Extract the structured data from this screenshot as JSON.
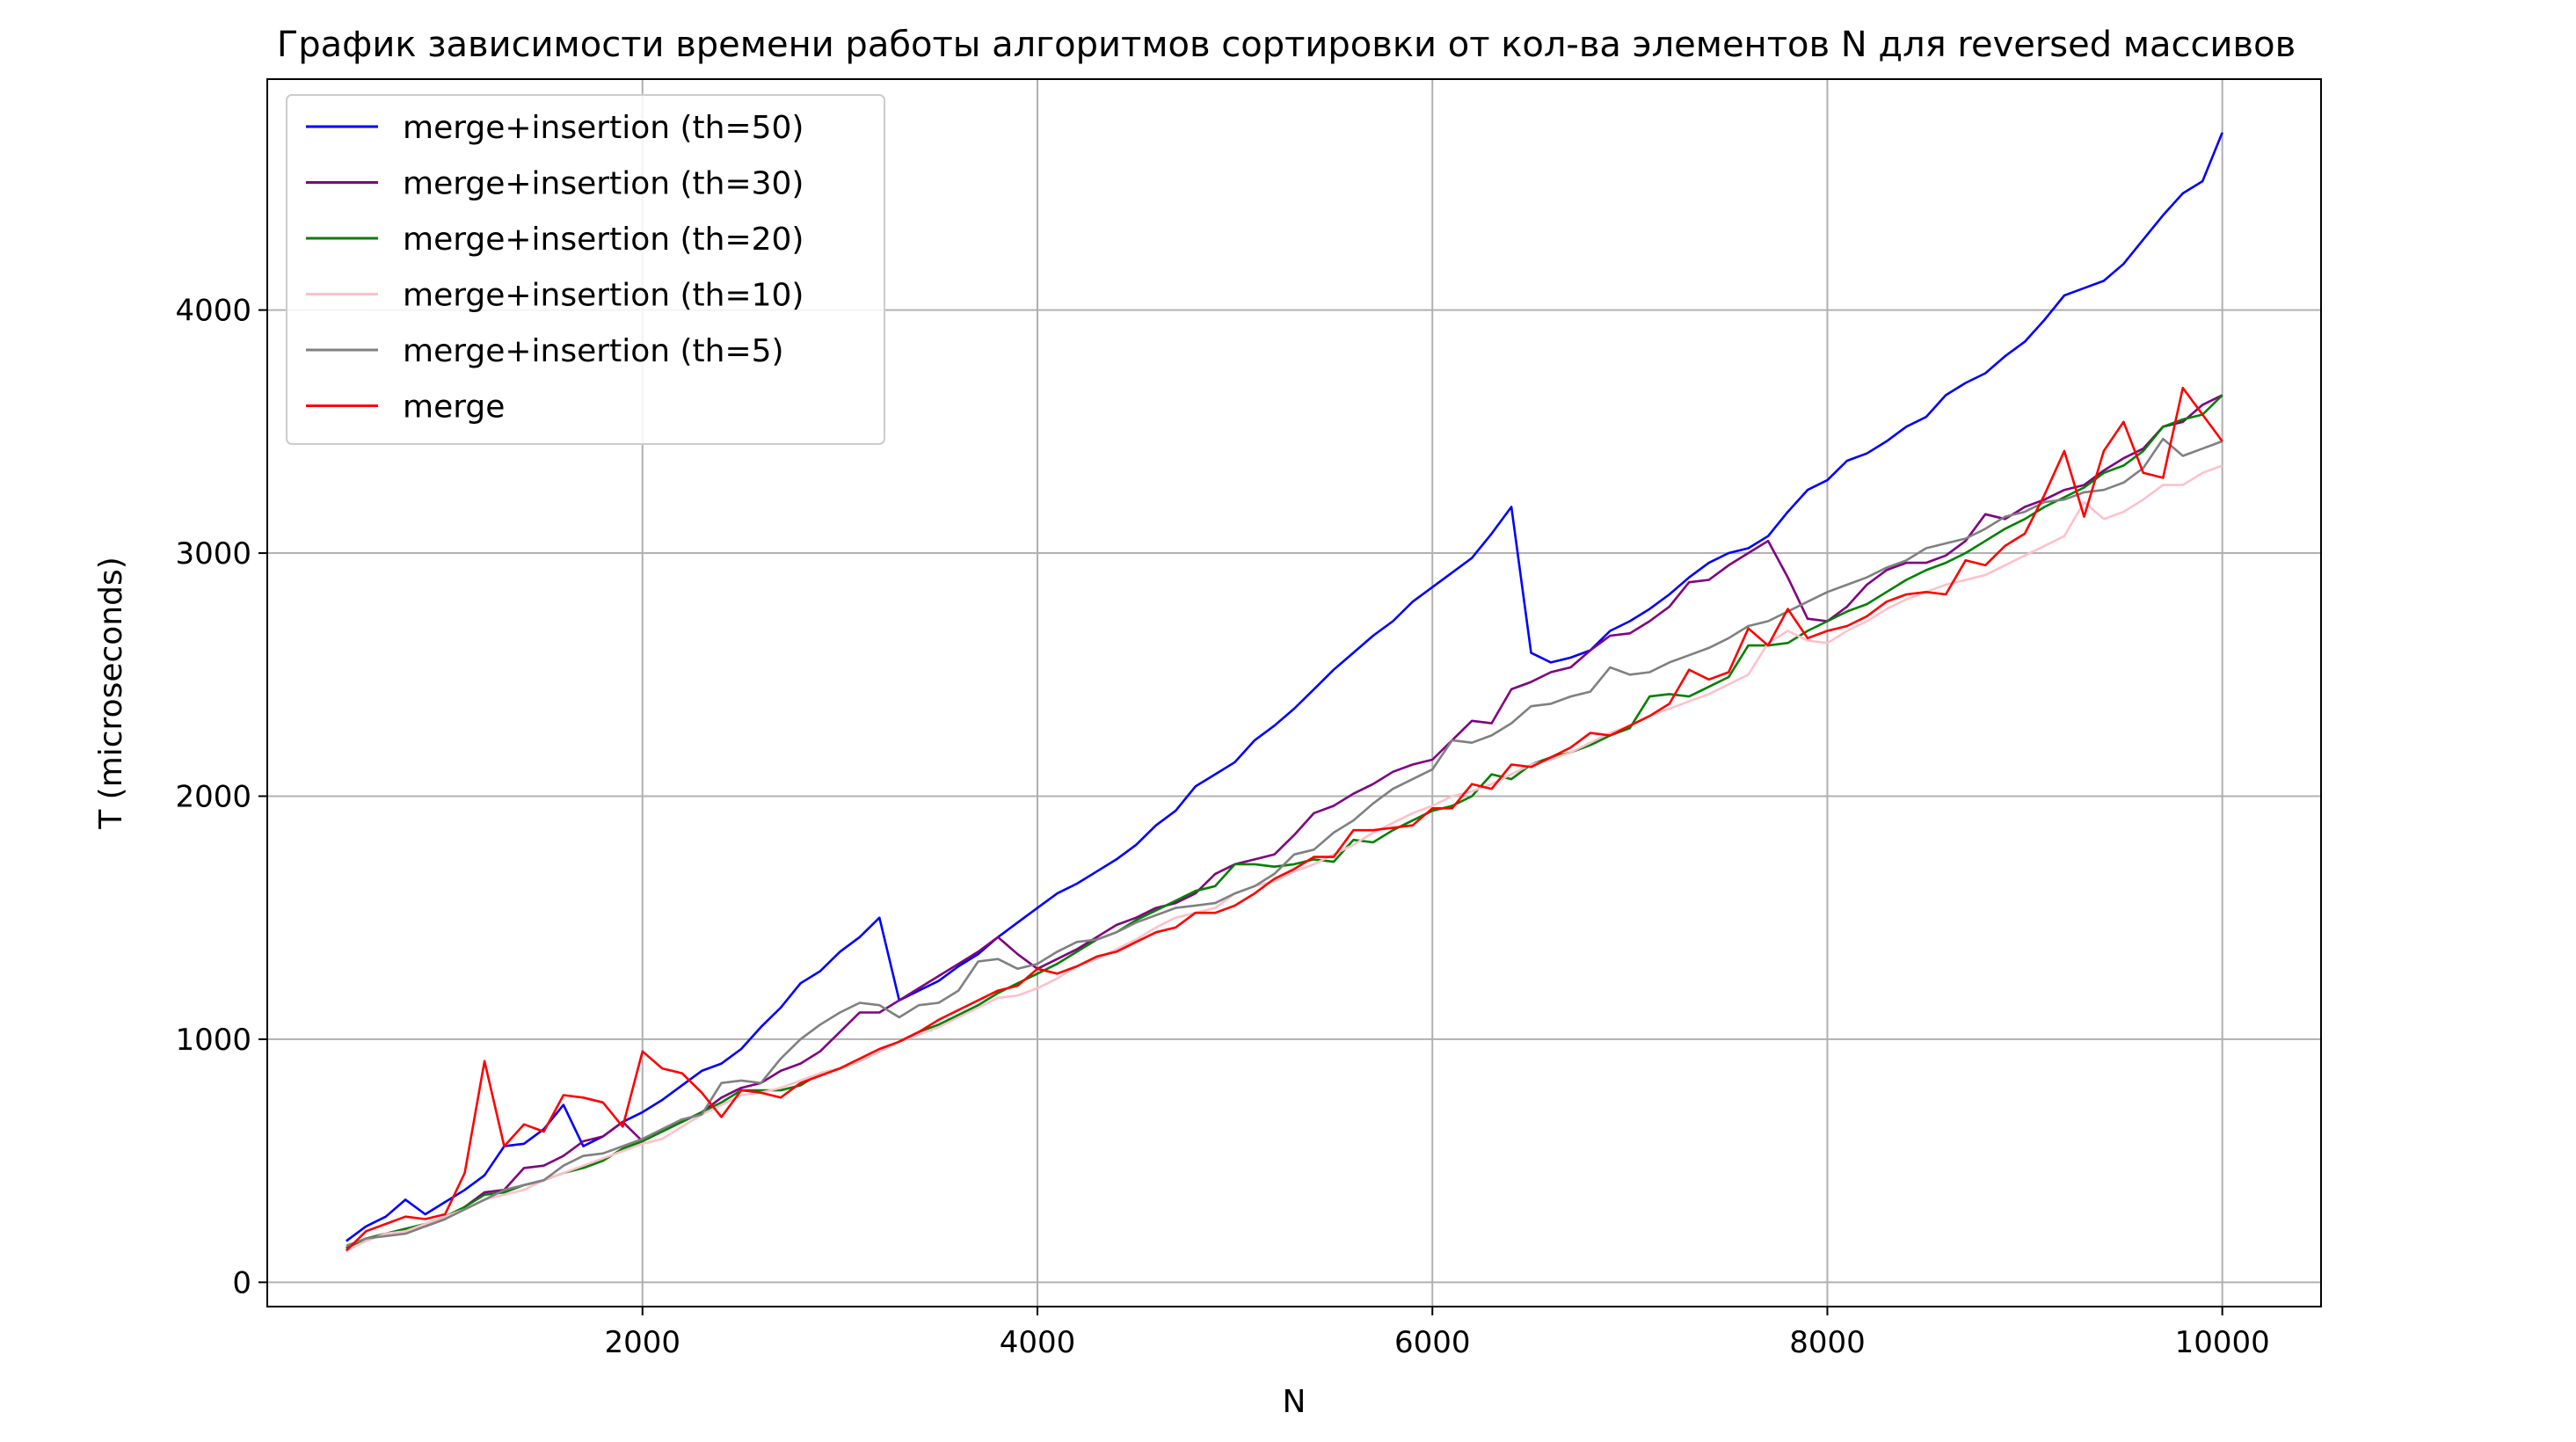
{
  "chart_data": {
    "type": "line",
    "title": "График зависимости времени работы алгоритмов сортировки от кол-ва элементов N для reversed массивов",
    "xlabel": "N",
    "ylabel": "T (microseconds)",
    "xlim": [
      100,
      10500
    ],
    "ylim": [
      -100,
      4950
    ],
    "xticks": [
      2000,
      4000,
      6000,
      8000,
      10000
    ],
    "yticks": [
      0,
      1000,
      2000,
      3000,
      4000
    ],
    "grid": true,
    "legend_position": "top-left",
    "x": [
      500,
      600,
      700,
      800,
      900,
      1000,
      1100,
      1200,
      1300,
      1400,
      1500,
      1600,
      1700,
      1800,
      1900,
      2000,
      2100,
      2200,
      2300,
      2400,
      2500,
      2600,
      2700,
      2800,
      2900,
      3000,
      3100,
      3200,
      3300,
      3400,
      3500,
      3600,
      3700,
      3800,
      3900,
      4000,
      4100,
      4200,
      4300,
      4400,
      4500,
      4600,
      4700,
      4800,
      4900,
      5000,
      5100,
      5200,
      5300,
      5400,
      5500,
      5600,
      5700,
      5800,
      5900,
      6000,
      6100,
      6200,
      6300,
      6400,
      6500,
      6600,
      6700,
      6800,
      6900,
      7000,
      7100,
      7200,
      7300,
      7400,
      7500,
      7600,
      7700,
      7800,
      7900,
      8000,
      8100,
      8200,
      8300,
      8400,
      8500,
      8600,
      8700,
      8800,
      8900,
      9000,
      9100,
      9200,
      9300,
      9400,
      9500,
      9600,
      9700,
      9800,
      9900,
      10000
    ],
    "series": [
      {
        "name": "merge+insertion (th=50)",
        "color": "#0000ff",
        "values": [
          170,
          230,
          270,
          340,
          280,
          330,
          380,
          440,
          560,
          570,
          630,
          730,
          560,
          600,
          660,
          700,
          750,
          810,
          870,
          900,
          960,
          1050,
          1130,
          1230,
          1280,
          1360,
          1420,
          1500,
          1160,
          1200,
          1240,
          1300,
          1350,
          1420,
          1480,
          1540,
          1600,
          1640,
          1690,
          1740,
          1800,
          1880,
          1940,
          2040,
          2090,
          2140,
          2230,
          2290,
          2360,
          2440,
          2520,
          2590,
          2660,
          2720,
          2800,
          2860,
          2920,
          2980,
          3080,
          3190,
          2590,
          2550,
          2570,
          2600,
          2680,
          2720,
          2770,
          2830,
          2900,
          2960,
          3000,
          3020,
          3070,
          3170,
          3260,
          3300,
          3380,
          3410,
          3460,
          3520,
          3560,
          3650,
          3700,
          3740,
          3810,
          3870,
          3960,
          4060,
          4090,
          4120,
          4190,
          4290,
          4390,
          4480,
          4530,
          4730
        ]
      },
      {
        "name": "merge+insertion (th=30)",
        "color": "#800080",
        "values": [
          140,
          180,
          200,
          220,
          230,
          260,
          310,
          370,
          380,
          470,
          480,
          520,
          580,
          600,
          660,
          580,
          630,
          660,
          700,
          760,
          800,
          820,
          870,
          900,
          950,
          1030,
          1110,
          1110,
          1160,
          1210,
          1260,
          1310,
          1360,
          1420,
          1350,
          1290,
          1330,
          1370,
          1420,
          1470,
          1500,
          1540,
          1560,
          1600,
          1680,
          1720,
          1740,
          1760,
          1840,
          1930,
          1960,
          2010,
          2050,
          2100,
          2130,
          2150,
          2230,
          2310,
          2300,
          2440,
          2470,
          2510,
          2530,
          2600,
          2660,
          2670,
          2720,
          2780,
          2880,
          2890,
          2950,
          3000,
          3050,
          2900,
          2730,
          2720,
          2780,
          2870,
          2930,
          2960,
          2960,
          2990,
          3050,
          3160,
          3140,
          3190,
          3220,
          3260,
          3280,
          3340,
          3390,
          3430,
          3520,
          3540,
          3610,
          3650
        ]
      },
      {
        "name": "merge+insertion (th=20)",
        "color": "#008000",
        "values": [
          140,
          180,
          200,
          220,
          240,
          270,
          310,
          360,
          370,
          400,
          420,
          450,
          470,
          500,
          550,
          580,
          620,
          660,
          700,
          740,
          790,
          790,
          790,
          810,
          860,
          880,
          910,
          950,
          990,
          1030,
          1060,
          1100,
          1140,
          1190,
          1230,
          1270,
          1310,
          1360,
          1410,
          1440,
          1490,
          1530,
          1570,
          1610,
          1630,
          1720,
          1720,
          1710,
          1720,
          1740,
          1730,
          1820,
          1810,
          1860,
          1900,
          1940,
          1960,
          2000,
          2090,
          2070,
          2130,
          2160,
          2180,
          2210,
          2250,
          2280,
          2410,
          2420,
          2410,
          2450,
          2490,
          2620,
          2620,
          2630,
          2680,
          2720,
          2760,
          2790,
          2840,
          2890,
          2930,
          2960,
          3000,
          3050,
          3100,
          3140,
          3190,
          3230,
          3270,
          3330,
          3360,
          3420,
          3520,
          3550,
          3570,
          3650
        ]
      },
      {
        "name": "merge+insertion (th=10)",
        "color": "#ffc0cb",
        "values": [
          130,
          170,
          200,
          210,
          240,
          270,
          300,
          340,
          360,
          380,
          420,
          450,
          480,
          510,
          540,
          570,
          590,
          640,
          690,
          730,
          770,
          780,
          800,
          830,
          860,
          880,
          910,
          950,
          990,
          1020,
          1050,
          1090,
          1130,
          1170,
          1180,
          1210,
          1250,
          1300,
          1330,
          1370,
          1410,
          1460,
          1500,
          1520,
          1540,
          1600,
          1630,
          1650,
          1690,
          1720,
          1760,
          1800,
          1850,
          1890,
          1930,
          1960,
          2000,
          2020,
          2050,
          2090,
          2130,
          2150,
          2180,
          2220,
          2260,
          2290,
          2330,
          2360,
          2390,
          2420,
          2460,
          2500,
          2630,
          2680,
          2640,
          2630,
          2680,
          2720,
          2770,
          2810,
          2840,
          2870,
          2890,
          2910,
          2950,
          2990,
          3030,
          3070,
          3210,
          3140,
          3170,
          3220,
          3280,
          3280,
          3330,
          3360
        ]
      },
      {
        "name": "merge+insertion (th=5)",
        "color": "#808080",
        "values": [
          150,
          180,
          190,
          200,
          230,
          260,
          300,
          340,
          380,
          400,
          420,
          480,
          520,
          530,
          560,
          590,
          630,
          670,
          690,
          820,
          830,
          820,
          920,
          1000,
          1060,
          1110,
          1150,
          1140,
          1090,
          1140,
          1150,
          1200,
          1320,
          1330,
          1290,
          1310,
          1360,
          1400,
          1410,
          1440,
          1480,
          1510,
          1540,
          1550,
          1560,
          1600,
          1630,
          1680,
          1760,
          1780,
          1850,
          1900,
          1970,
          2030,
          2070,
          2110,
          2230,
          2220,
          2250,
          2300,
          2370,
          2380,
          2410,
          2430,
          2530,
          2500,
          2510,
          2550,
          2580,
          2610,
          2650,
          2700,
          2720,
          2760,
          2800,
          2840,
          2870,
          2900,
          2940,
          2970,
          3020,
          3040,
          3060,
          3100,
          3150,
          3170,
          3210,
          3220,
          3250,
          3260,
          3290,
          3350,
          3470,
          3400,
          3430,
          3460
        ]
      },
      {
        "name": "merge",
        "color": "#ff0000",
        "values": [
          130,
          210,
          240,
          270,
          260,
          280,
          450,
          910,
          560,
          650,
          620,
          770,
          760,
          740,
          640,
          950,
          880,
          860,
          780,
          680,
          790,
          780,
          760,
          820,
          850,
          880,
          920,
          960,
          990,
          1030,
          1080,
          1120,
          1160,
          1200,
          1220,
          1290,
          1270,
          1300,
          1340,
          1360,
          1400,
          1440,
          1460,
          1520,
          1520,
          1550,
          1600,
          1660,
          1700,
          1750,
          1750,
          1860,
          1860,
          1870,
          1880,
          1950,
          1950,
          2050,
          2030,
          2130,
          2120,
          2160,
          2200,
          2260,
          2250,
          2290,
          2330,
          2380,
          2520,
          2480,
          2510,
          2690,
          2620,
          2770,
          2650,
          2680,
          2700,
          2740,
          2800,
          2830,
          2840,
          2830,
          2970,
          2950,
          3030,
          3080,
          3240,
          3420,
          3150,
          3420,
          3540,
          3330,
          3310,
          3680,
          3570,
          3460
        ]
      }
    ]
  }
}
